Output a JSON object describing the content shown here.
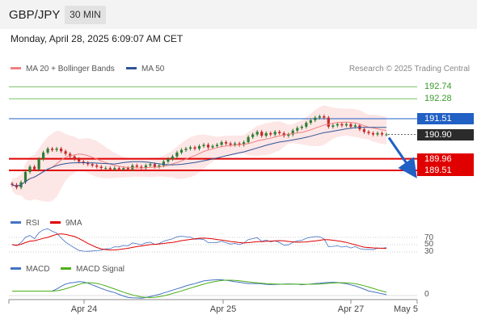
{
  "header": {
    "symbol": "GBP/JPY",
    "timeframe": "30 MIN"
  },
  "date": "Monday, April 28, 2025 6:09:07 AM CET",
  "legend": {
    "ma20": "MA 20 + Bollinger Bands",
    "ma50": "MA 50",
    "credit": "Research © 2025 Trading Central",
    "rsi": "RSI",
    "ma9": "9MA",
    "macd": "MACD",
    "macd_signal": "MACD Signal"
  },
  "colors": {
    "ma20": "#f08080",
    "ma50": "#2f5597",
    "band": "#fbd5d5",
    "up": "#2e7d32",
    "down": "#c62828",
    "resistance": "#2160c4",
    "support": "#e00000",
    "target": "#7cc36a",
    "macd": "#4472c4",
    "signal": "#4caf1a"
  },
  "levels": [
    {
      "label": "192.74",
      "type": "target"
    },
    {
      "label": "192.28",
      "type": "target"
    },
    {
      "label": "191.51",
      "type": "resistance"
    },
    {
      "label": "190.90",
      "type": "last"
    },
    {
      "label": "189.96",
      "type": "support"
    },
    {
      "label": "189.51",
      "type": "support"
    }
  ],
  "rsi_axis": [
    "70",
    "50",
    "30"
  ],
  "macd_axis": [
    "0"
  ],
  "x_labels": [
    "Apr 24",
    "Apr 25",
    "Apr 27",
    "May 5"
  ],
  "chart_data": {
    "type": "candlestick",
    "symbol": "GBP/JPY",
    "interval": "30 MIN",
    "price_levels": [
      192.74,
      192.28,
      191.51,
      190.9,
      189.96,
      189.51
    ],
    "last_price": 190.9,
    "close_series": [
      188.95,
      188.85,
      189.05,
      189.45,
      189.65,
      189.55,
      189.95,
      190.2,
      190.35,
      190.3,
      190.35,
      190.25,
      190.15,
      190.05,
      189.95,
      189.85,
      189.8,
      189.75,
      189.7,
      189.65,
      189.6,
      189.6,
      189.55,
      189.6,
      189.55,
      189.6,
      189.55,
      189.7,
      189.65,
      189.6,
      189.7,
      189.75,
      189.65,
      189.7,
      189.85,
      189.95,
      190.05,
      190.2,
      190.3,
      190.35,
      190.4,
      190.35,
      190.45,
      190.5,
      190.4,
      190.45,
      190.5,
      190.6,
      190.55,
      190.5,
      190.55,
      190.5,
      190.6,
      190.8,
      190.9,
      191.0,
      190.85,
      190.95,
      190.9,
      191.0,
      190.95,
      190.85,
      190.9,
      191.05,
      191.15,
      191.2,
      191.35,
      191.45,
      191.55,
      191.6,
      191.55,
      191.2,
      191.25,
      191.3,
      191.25,
      191.3,
      191.2,
      191.25,
      191.1,
      191.0,
      190.95,
      190.9,
      190.95,
      190.9,
      190.9
    ],
    "forecast": {
      "from": 190.9,
      "to": 189.51
    },
    "rsi_levels": [
      70,
      50,
      30
    ],
    "x_ticks": [
      "Apr 24",
      "Apr 25",
      "Apr 27",
      "May 5"
    ]
  }
}
